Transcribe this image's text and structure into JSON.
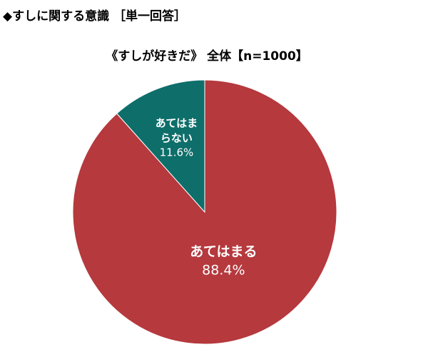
{
  "chart_data": {
    "type": "pie",
    "title": "◆すしに関する意識 ［単一回答］",
    "subtitle": "《すしが好きだ》 全体【n=1000】",
    "categories": [
      "あてはまる",
      "あてはまらない"
    ],
    "values": [
      88.4,
      11.6
    ],
    "value_labels": [
      "88.4%",
      "11.6%"
    ],
    "colors": [
      "#b5393d",
      "#0e6e6a"
    ]
  }
}
